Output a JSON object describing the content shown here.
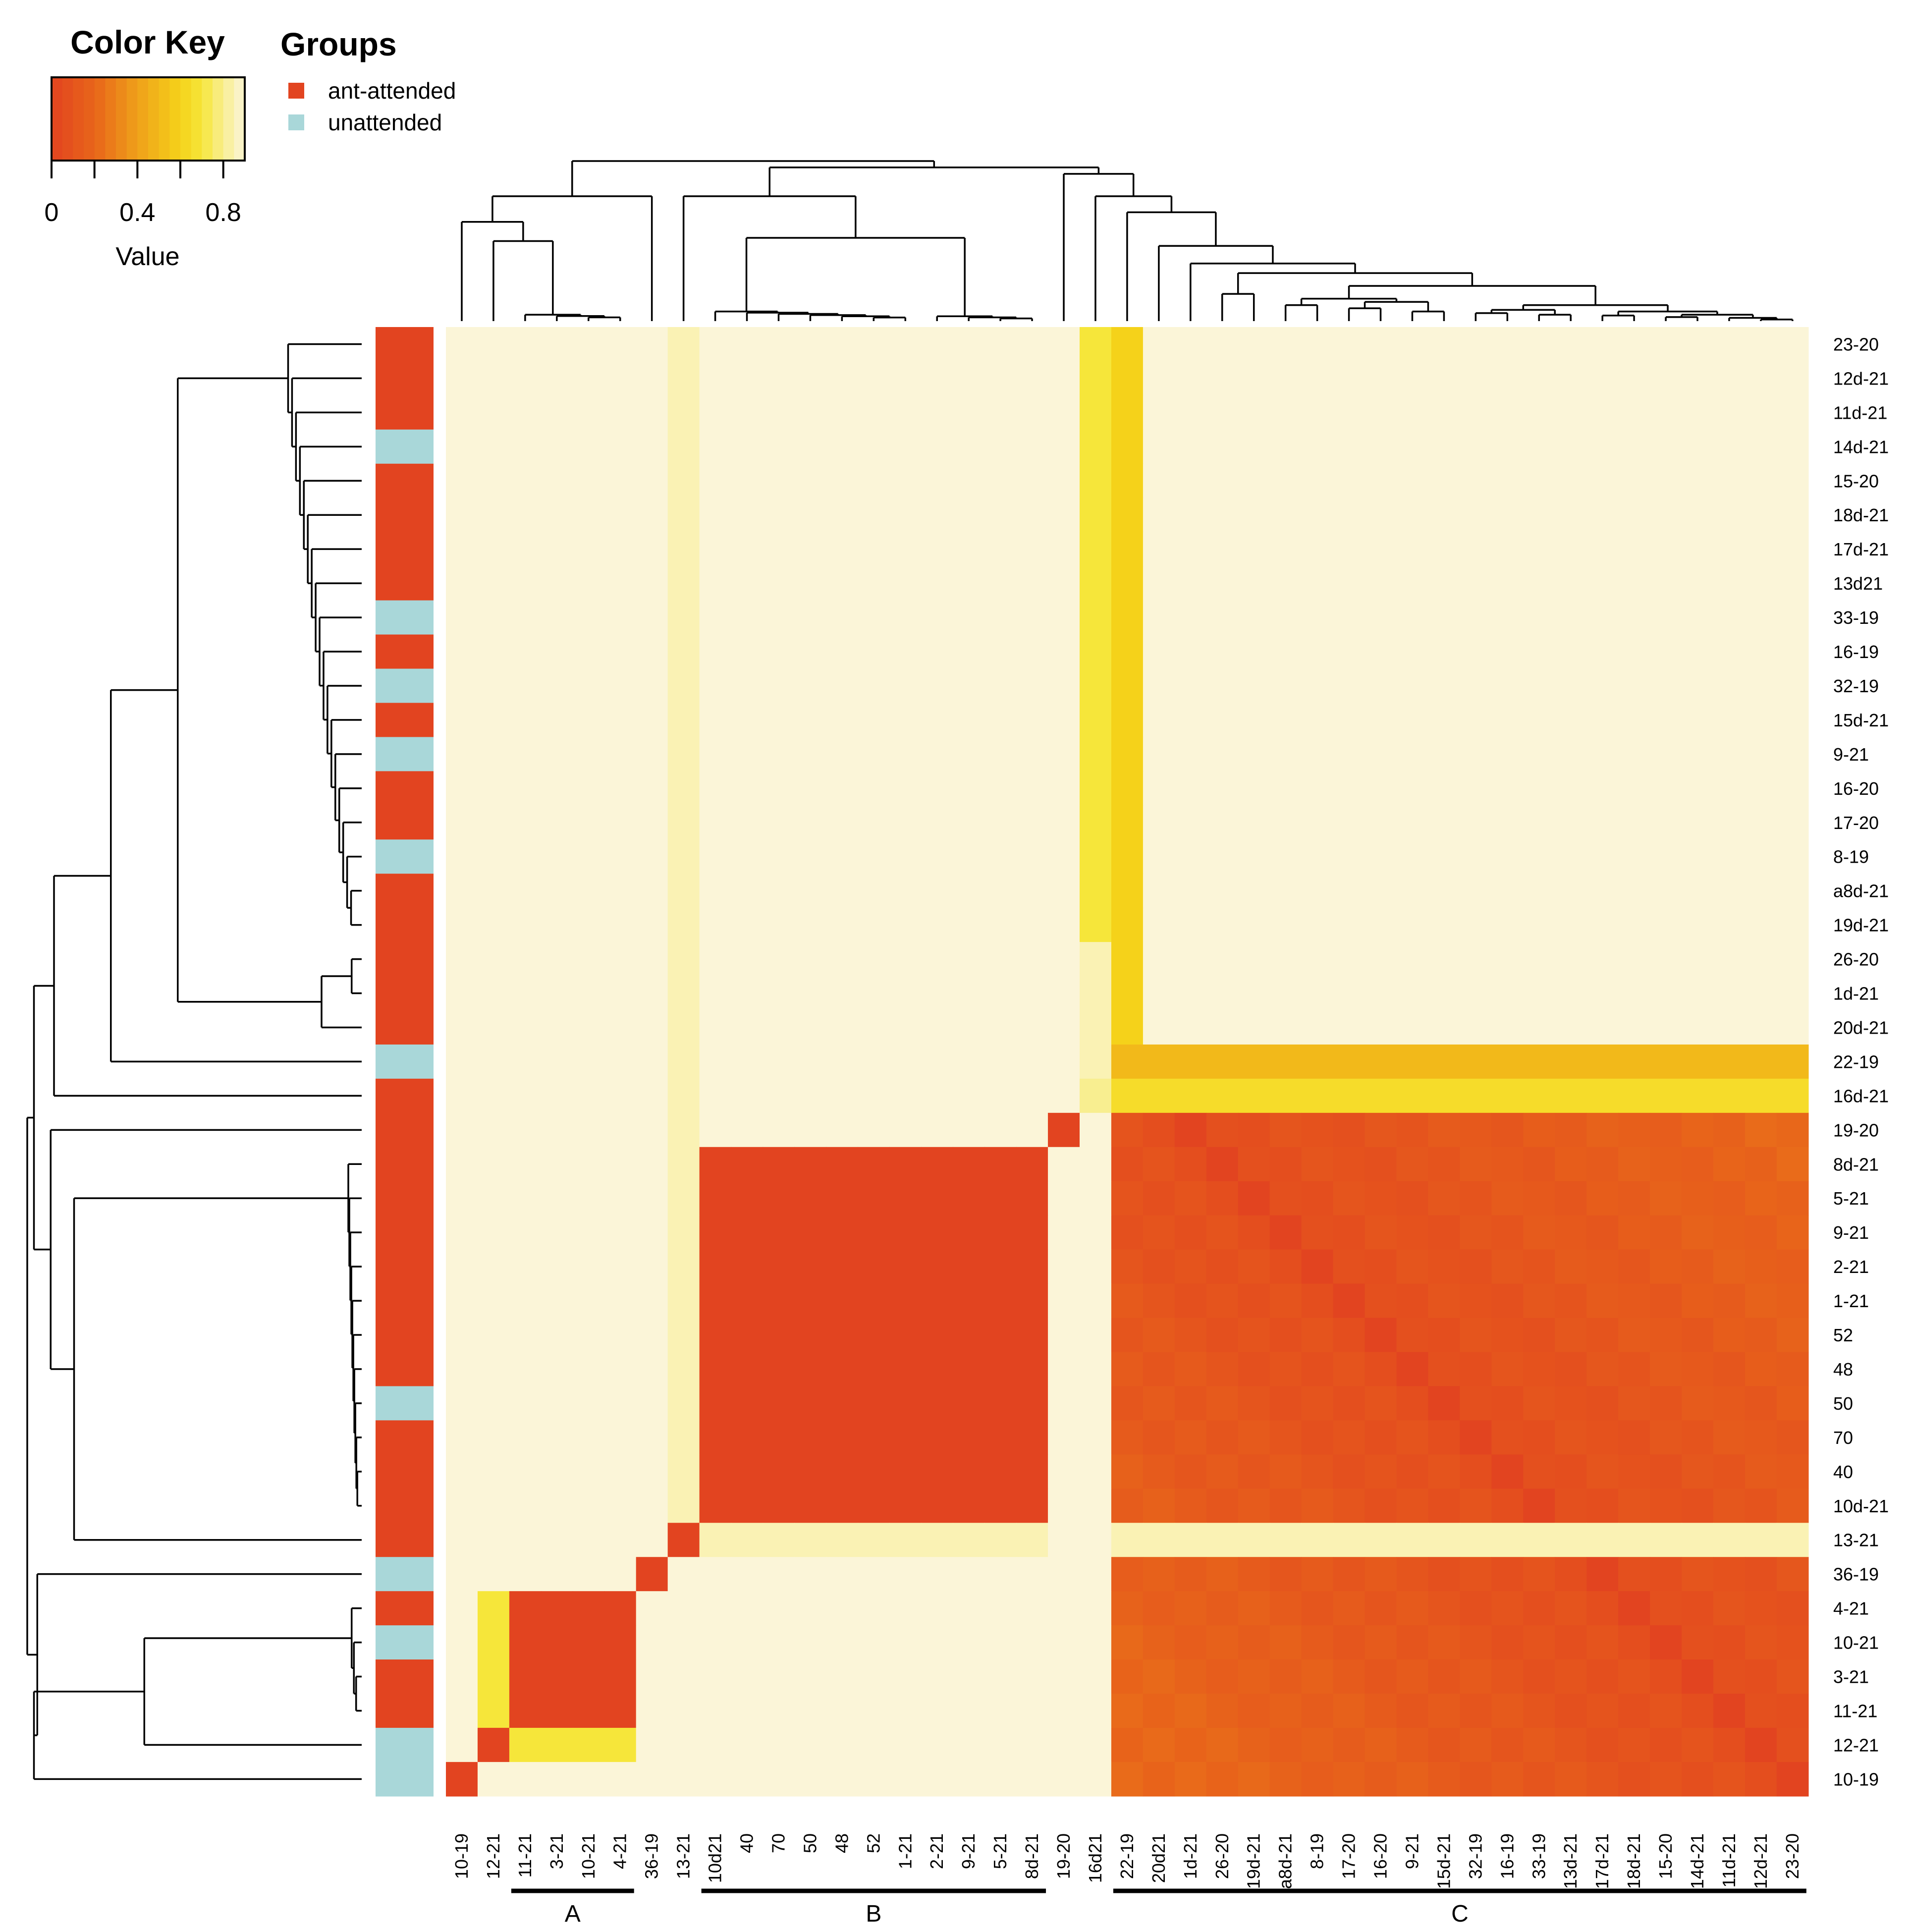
{
  "chart_data": {
    "type": "heatmap",
    "title": "",
    "row_labels": [
      "23-20",
      "12d-21",
      "11d-21",
      "14d-21",
      "15-20",
      "18d-21",
      "17d-21",
      "13d21",
      "33-19",
      "16-19",
      "32-19",
      "15d-21",
      "9-21",
      "16-20",
      "17-20",
      "8-19",
      "a8d-21",
      "19d-21",
      "26-20",
      "1d-21",
      "20d-21",
      "22-19",
      "16d-21",
      "19-20",
      "8d-21",
      "5-21",
      "9-21",
      "2-21",
      "1-21",
      "52",
      "48",
      "50",
      "70",
      "40",
      "10d-21",
      "13-21",
      "36-19",
      "4-21",
      "10-21",
      "3-21",
      "11-21",
      "12-21",
      "10-19"
    ],
    "col_labels": [
      "10-19",
      "12-21",
      "11-21",
      "3-21",
      "10-21",
      "4-21",
      "36-19",
      "13-21",
      "10d21",
      "40",
      "70",
      "50",
      "48",
      "52",
      "1-21",
      "2-21",
      "9-21",
      "5-21",
      "8d-21",
      "19-20",
      "16d21",
      "22-19",
      "20d21",
      "1d-21",
      "26-20",
      "19d-21",
      "a8d-21",
      "8-19",
      "17-20",
      "16-20",
      "9-21",
      "15d-21",
      "32-19",
      "16-19",
      "33-19",
      "13d-21",
      "17d-21",
      "18d-21",
      "15-20",
      "14d-21",
      "11d-21",
      "12d-21",
      "23-20"
    ],
    "row_groups": [
      "ant-attended",
      "ant-attended",
      "ant-attended",
      "unattended",
      "ant-attended",
      "ant-attended",
      "ant-attended",
      "ant-attended",
      "unattended",
      "ant-attended",
      "unattended",
      "ant-attended",
      "unattended",
      "ant-attended",
      "ant-attended",
      "unattended",
      "ant-attended",
      "ant-attended",
      "ant-attended",
      "ant-attended",
      "ant-attended",
      "unattended",
      "ant-attended",
      "ant-attended",
      "ant-attended",
      "ant-attended",
      "ant-attended",
      "ant-attended",
      "ant-attended",
      "ant-attended",
      "ant-attended",
      "unattended",
      "ant-attended",
      "ant-attended",
      "ant-attended",
      "ant-attended",
      "unattended",
      "ant-attended",
      "unattended",
      "ant-attended",
      "ant-attended",
      "unattended",
      "unattended"
    ],
    "color_key": {
      "title": "Color Key",
      "xlabel": "Value",
      "ticks": [
        "0",
        "0.4",
        "0.8"
      ],
      "range": [
        0,
        0.9
      ]
    },
    "groups_legend": {
      "title": "Groups",
      "items": [
        {
          "name": "ant-attended",
          "color": "#E24420"
        },
        {
          "name": "unattended",
          "color": "#A9D7D9"
        }
      ]
    },
    "clusters": [
      {
        "label": "A"
      },
      {
        "label": "B"
      },
      {
        "label": "C"
      }
    ],
    "value_description": "Pairwise similarity matrix (0 = red, 0.9 = pale yellow); values estimated visually from the color ramp."
  }
}
